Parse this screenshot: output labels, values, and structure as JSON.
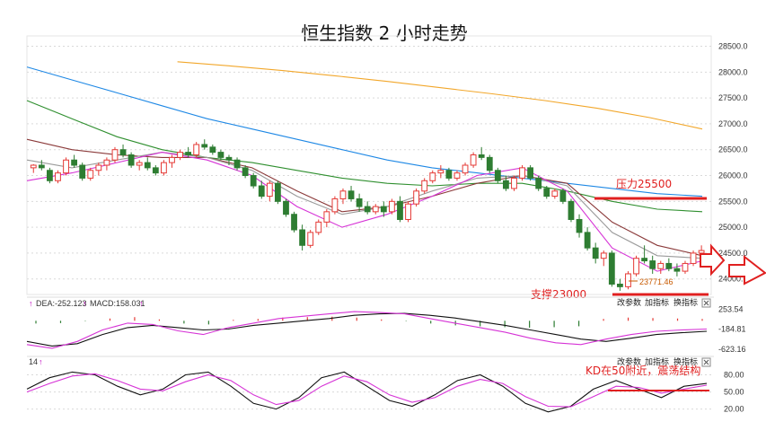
{
  "title": "恒生指数 2 小时走势",
  "colors": {
    "up": "#e53935",
    "down": "#2e7d32",
    "ma_blue": "#1e88e5",
    "ma_orange": "#f2a72b",
    "ma_green": "#2f8f2f",
    "ma_brown": "#8b3a3a",
    "ma_pink": "#d633d6",
    "ma_gray": "#9a9a9a",
    "annotation": "#e02020",
    "grid": "#d9d9d9"
  },
  "icons": {
    "close": "close-icon",
    "arrow": "hollow-right-arrow-icon"
  },
  "buttons": {
    "macd": [
      "改参数",
      "加指标",
      "换指标"
    ],
    "kd": [
      "改参数",
      "加指标",
      "换指标"
    ]
  },
  "macd_header": {
    "arrow1": "↑",
    "dea": "DEA:-252.123",
    "arrow2": "↑",
    "macd": "MACD:158.031",
    "arrow3": "↑"
  },
  "kd_header": {
    "period": "14",
    "arrow": "↑"
  },
  "annotations": {
    "resistance": "压力25500",
    "support": "支撑23000",
    "low_mark": "23771.46",
    "kd_note": "KD在50附近，震荡结构"
  },
  "chart_data": [
    {
      "type": "candlestick",
      "name": "price",
      "title": "恒生指数 2 小时走势",
      "ylim": [
        23700,
        28700
      ],
      "yticks": [
        "28500.0",
        "28000.0",
        "27500.0",
        "27000.0",
        "26500.0",
        "26000.0",
        "25500.0",
        "25000.0",
        "24500.0",
        "24000.0"
      ],
      "candles": [
        [
          26150,
          26220,
          26050,
          26200
        ],
        [
          26200,
          26300,
          26100,
          26150
        ],
        [
          26100,
          26150,
          25850,
          25900
        ],
        [
          25900,
          26100,
          25850,
          26050
        ],
        [
          26050,
          26350,
          26000,
          26300
        ],
        [
          26300,
          26400,
          26150,
          26200
        ],
        [
          26200,
          26250,
          25900,
          25950
        ],
        [
          25950,
          26150,
          25900,
          26100
        ],
        [
          26100,
          26250,
          26000,
          26200
        ],
        [
          26200,
          26350,
          26100,
          26300
        ],
        [
          26300,
          26550,
          26250,
          26500
        ],
        [
          26500,
          26600,
          26350,
          26400
        ],
        [
          26400,
          26450,
          26150,
          26200
        ],
        [
          26200,
          26300,
          26100,
          26250
        ],
        [
          26250,
          26350,
          26100,
          26150
        ],
        [
          26150,
          26200,
          26000,
          26050
        ],
        [
          26050,
          26300,
          26000,
          26250
        ],
        [
          26250,
          26400,
          26150,
          26350
        ],
        [
          26350,
          26500,
          26300,
          26450
        ],
        [
          26450,
          26550,
          26350,
          26400
        ],
        [
          26400,
          26650,
          26350,
          26600
        ],
        [
          26600,
          26700,
          26500,
          26550
        ],
        [
          26550,
          26600,
          26400,
          26450
        ],
        [
          26450,
          26500,
          26300,
          26350
        ],
        [
          26350,
          26400,
          26200,
          26300
        ],
        [
          26300,
          26350,
          26100,
          26150
        ],
        [
          26150,
          26200,
          25950,
          26000
        ],
        [
          26000,
          26050,
          25750,
          25800
        ],
        [
          25800,
          25900,
          25550,
          25600
        ],
        [
          25600,
          25900,
          25500,
          25850
        ],
        [
          25850,
          25900,
          25450,
          25500
        ],
        [
          25500,
          25550,
          25200,
          25250
        ],
        [
          25250,
          25300,
          24900,
          24950
        ],
        [
          24950,
          25050,
          24550,
          24650
        ],
        [
          24650,
          24950,
          24600,
          24900
        ],
        [
          24900,
          25150,
          24850,
          25100
        ],
        [
          25100,
          25350,
          25000,
          25300
        ],
        [
          25300,
          25600,
          25250,
          25550
        ],
        [
          25550,
          25750,
          25450,
          25700
        ],
        [
          25700,
          25800,
          25500,
          25550
        ],
        [
          25550,
          25650,
          25300,
          25400
        ],
        [
          25400,
          25500,
          25250,
          25300
        ],
        [
          25300,
          25450,
          25250,
          25400
        ],
        [
          25400,
          25500,
          25200,
          25300
        ],
        [
          25300,
          25550,
          25250,
          25500
        ],
        [
          25500,
          25600,
          25100,
          25150
        ],
        [
          25150,
          25500,
          25100,
          25450
        ],
        [
          25450,
          25750,
          25400,
          25700
        ],
        [
          25700,
          25950,
          25650,
          25900
        ],
        [
          25900,
          26100,
          25850,
          26050
        ],
        [
          26050,
          26200,
          25950,
          26100
        ],
        [
          26100,
          26150,
          25900,
          25950
        ],
        [
          25950,
          26100,
          25900,
          26050
        ],
        [
          26050,
          26250,
          26000,
          26200
        ],
        [
          26200,
          26450,
          26150,
          26400
        ],
        [
          26400,
          26550,
          26300,
          26350
        ],
        [
          26350,
          26400,
          26050,
          26100
        ],
        [
          26100,
          26150,
          25850,
          25900
        ],
        [
          25900,
          26000,
          25700,
          25750
        ],
        [
          25750,
          26000,
          25700,
          25950
        ],
        [
          25950,
          26200,
          25900,
          26150
        ],
        [
          26150,
          26200,
          25900,
          25950
        ],
        [
          25950,
          26000,
          25700,
          25750
        ],
        [
          25750,
          25800,
          25550,
          25600
        ],
        [
          25600,
          25750,
          25550,
          25700
        ],
        [
          25700,
          25750,
          25450,
          25500
        ],
        [
          25500,
          25550,
          25100,
          25150
        ],
        [
          25150,
          25250,
          24800,
          24900
        ],
        [
          24900,
          25000,
          24550,
          24600
        ],
        [
          24600,
          24700,
          24300,
          24400
        ],
        [
          24400,
          24550,
          24250,
          24500
        ],
        [
          24500,
          24550,
          23850,
          23900
        ],
        [
          23900,
          24000,
          23771,
          23850
        ],
        [
          23850,
          24150,
          23800,
          24100
        ],
        [
          24100,
          24450,
          24050,
          24400
        ],
        [
          24400,
          24650,
          24300,
          24350
        ],
        [
          24350,
          24450,
          24100,
          24200
        ],
        [
          24200,
          24350,
          24100,
          24300
        ],
        [
          24300,
          24400,
          24150,
          24200
        ],
        [
          24200,
          24300,
          24050,
          24150
        ],
        [
          24150,
          24350,
          24100,
          24300
        ],
        [
          24300,
          24550,
          24250,
          24500
        ],
        [
          24500,
          24650,
          24400,
          24550
        ]
      ],
      "moving_averages": [
        {
          "color_key": "ma_blue",
          "values": [
            28100,
            27850,
            27600,
            27350,
            27100,
            26900,
            26700,
            26500,
            26300,
            26150,
            26050,
            25950,
            25850,
            25750,
            25650,
            25600
          ]
        },
        {
          "color_key": "ma_orange",
          "start": 0.22,
          "values": [
            28200,
            28120,
            28030,
            27930,
            27820,
            27700,
            27580,
            27450,
            27300,
            27120,
            26900
          ]
        },
        {
          "color_key": "ma_green",
          "values": [
            27450,
            27100,
            26750,
            26500,
            26350,
            26250,
            26100,
            25950,
            25850,
            25800,
            25850,
            25850,
            25700,
            25500,
            25350,
            25300
          ]
        },
        {
          "color_key": "ma_brown",
          "values": [
            26700,
            26500,
            26400,
            26350,
            26350,
            26150,
            25700,
            25300,
            25400,
            25600,
            25850,
            26000,
            25850,
            25100,
            24650,
            24450
          ]
        },
        {
          "color_key": "ma_gray",
          "values": [
            26300,
            26150,
            26300,
            26450,
            26350,
            26100,
            25600,
            25250,
            25400,
            25700,
            25950,
            26000,
            25800,
            24900,
            24450,
            24400
          ]
        },
        {
          "color_key": "ma_pink",
          "values": [
            25900,
            26050,
            26250,
            26450,
            26300,
            26000,
            25400,
            25000,
            25250,
            25600,
            26000,
            26150,
            25700,
            24600,
            24150,
            24350
          ]
        }
      ],
      "lines": [
        {
          "label": "压力25500",
          "value": 25500,
          "from": 0.8,
          "to": 0.97
        },
        {
          "label": "支撑23000",
          "value": null,
          "from": 0.8,
          "to": 0.97
        }
      ]
    },
    {
      "type": "macd",
      "yticks": [
        "253.54",
        "-184.81",
        "-623.16"
      ],
      "ylim": [
        -700,
        300
      ],
      "dea": [
        -450,
        -550,
        -500,
        -300,
        -150,
        -100,
        -150,
        -200,
        -180,
        -100,
        -50,
        0,
        50,
        120,
        150,
        160,
        120,
        60,
        -20,
        -100,
        -200,
        -300,
        -400,
        -450,
        -380,
        -300,
        -260,
        -230
      ],
      "macd_line": [
        -520,
        -600,
        -450,
        -200,
        -50,
        -80,
        -220,
        -300,
        -150,
        -50,
        50,
        100,
        150,
        200,
        180,
        150,
        50,
        -50,
        -150,
        -250,
        -380,
        -480,
        -520,
        -400,
        -300,
        -230,
        -200,
        -180
      ],
      "hist": [
        -60,
        -50,
        -10,
        50,
        80,
        30,
        -60,
        -80,
        20,
        40,
        70,
        80,
        90,
        70,
        30,
        -10,
        -60,
        -100,
        -120,
        -140,
        -150,
        -140,
        -120,
        40,
        70,
        60,
        50,
        40
      ]
    },
    {
      "type": "kd",
      "period": "14",
      "yticks": [
        "80.00",
        "50.00",
        "20.00"
      ],
      "ylim": [
        10,
        95
      ],
      "k": [
        55,
        75,
        85,
        80,
        60,
        45,
        55,
        80,
        85,
        60,
        30,
        20,
        40,
        75,
        85,
        60,
        35,
        25,
        45,
        70,
        80,
        60,
        30,
        15,
        25,
        55,
        70,
        55,
        40,
        60,
        65
      ],
      "d": [
        50,
        65,
        78,
        82,
        70,
        55,
        52,
        68,
        80,
        70,
        45,
        28,
        35,
        60,
        78,
        68,
        45,
        32,
        40,
        60,
        72,
        65,
        42,
        25,
        24,
        42,
        60,
        58,
        48,
        55,
        62
      ],
      "reference_line": 50
    }
  ]
}
